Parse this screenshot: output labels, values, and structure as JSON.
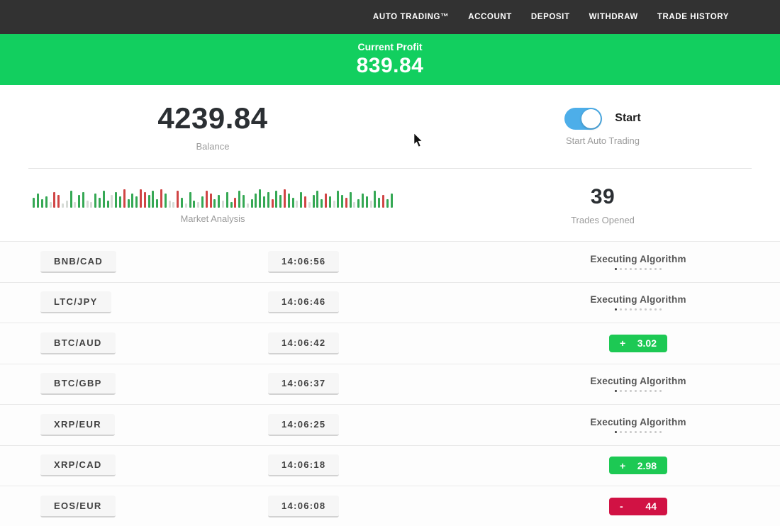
{
  "navbar": {
    "items": [
      {
        "id": "auto-trading",
        "label": "AUTO TRADING™"
      },
      {
        "id": "account",
        "label": "ACCOUNT"
      },
      {
        "id": "deposit",
        "label": "DEPOSIT"
      },
      {
        "id": "withdraw",
        "label": "WITHDRAW"
      },
      {
        "id": "trade-history",
        "label": "TRADE HISTORY"
      }
    ]
  },
  "profit_banner": {
    "label": "Current Profit",
    "value": "839.84"
  },
  "stats": {
    "balance": {
      "value": "4239.84",
      "label": "Balance"
    },
    "auto_trading": {
      "toggle_label": "Start",
      "label": "Start Auto Trading",
      "enabled": true
    },
    "market": {
      "label": "Market Analysis",
      "bars": [
        [
          14,
          "g"
        ],
        [
          20,
          "g"
        ],
        [
          12,
          "g"
        ],
        [
          16,
          "g"
        ],
        [
          8,
          "l"
        ],
        [
          22,
          "r"
        ],
        [
          18,
          "r"
        ],
        [
          6,
          "l"
        ],
        [
          10,
          "l"
        ],
        [
          24,
          "g"
        ],
        [
          8,
          "l"
        ],
        [
          18,
          "g"
        ],
        [
          22,
          "g"
        ],
        [
          10,
          "l"
        ],
        [
          8,
          "l"
        ],
        [
          20,
          "g"
        ],
        [
          14,
          "g"
        ],
        [
          24,
          "g"
        ],
        [
          10,
          "g"
        ],
        [
          18,
          "l"
        ],
        [
          22,
          "g"
        ],
        [
          16,
          "g"
        ],
        [
          26,
          "r"
        ],
        [
          12,
          "g"
        ],
        [
          20,
          "g"
        ],
        [
          16,
          "g"
        ],
        [
          26,
          "r"
        ],
        [
          22,
          "r"
        ],
        [
          18,
          "g"
        ],
        [
          24,
          "g"
        ],
        [
          12,
          "g"
        ],
        [
          26,
          "r"
        ],
        [
          20,
          "g"
        ],
        [
          10,
          "l"
        ],
        [
          8,
          "l"
        ],
        [
          24,
          "r"
        ],
        [
          14,
          "g"
        ],
        [
          6,
          "l"
        ],
        [
          22,
          "g"
        ],
        [
          10,
          "g"
        ],
        [
          8,
          "l"
        ],
        [
          16,
          "g"
        ],
        [
          24,
          "r"
        ],
        [
          20,
          "r"
        ],
        [
          12,
          "g"
        ],
        [
          18,
          "g"
        ],
        [
          10,
          "l"
        ],
        [
          22,
          "g"
        ],
        [
          8,
          "g"
        ],
        [
          14,
          "r"
        ],
        [
          24,
          "g"
        ],
        [
          18,
          "g"
        ],
        [
          6,
          "l"
        ],
        [
          12,
          "g"
        ],
        [
          20,
          "g"
        ],
        [
          26,
          "g"
        ],
        [
          16,
          "g"
        ],
        [
          22,
          "g"
        ],
        [
          12,
          "r"
        ],
        [
          24,
          "g"
        ],
        [
          18,
          "g"
        ],
        [
          26,
          "r"
        ],
        [
          20,
          "g"
        ],
        [
          14,
          "g"
        ],
        [
          10,
          "l"
        ],
        [
          22,
          "g"
        ],
        [
          16,
          "r"
        ],
        [
          8,
          "l"
        ],
        [
          18,
          "g"
        ],
        [
          24,
          "g"
        ],
        [
          12,
          "g"
        ],
        [
          20,
          "r"
        ],
        [
          16,
          "g"
        ],
        [
          10,
          "l"
        ],
        [
          24,
          "g"
        ],
        [
          18,
          "g"
        ],
        [
          14,
          "r"
        ],
        [
          22,
          "g"
        ],
        [
          8,
          "l"
        ],
        [
          12,
          "g"
        ],
        [
          20,
          "g"
        ],
        [
          16,
          "g"
        ],
        [
          10,
          "l"
        ],
        [
          24,
          "g"
        ],
        [
          14,
          "g"
        ],
        [
          18,
          "r"
        ],
        [
          12,
          "g"
        ],
        [
          20,
          "g"
        ]
      ]
    },
    "trades_opened": {
      "value": "39",
      "label": "Trades Opened"
    }
  },
  "trades": [
    {
      "pair": "BNB/CAD",
      "time": "14:06:56",
      "status": "executing",
      "status_label": "Executing Algorithm"
    },
    {
      "pair": "LTC/JPY",
      "time": "14:06:46",
      "status": "executing",
      "status_label": "Executing Algorithm"
    },
    {
      "pair": "BTC/AUD",
      "time": "14:06:42",
      "status": "profit",
      "sign": "+",
      "value": "3.02"
    },
    {
      "pair": "BTC/GBP",
      "time": "14:06:37",
      "status": "executing",
      "status_label": "Executing Algorithm"
    },
    {
      "pair": "XRP/EUR",
      "time": "14:06:25",
      "status": "executing",
      "status_label": "Executing Algorithm"
    },
    {
      "pair": "XRP/CAD",
      "time": "14:06:18",
      "status": "profit",
      "sign": "+",
      "value": "2.98"
    },
    {
      "pair": "EOS/EUR",
      "time": "14:06:08",
      "status": "loss",
      "sign": "-",
      "value": "44"
    }
  ],
  "progress_dots": {
    "count": 10,
    "active_index": 0
  },
  "colors": {
    "navbar_dark": "#323232",
    "banner_green": "#12cf5f",
    "profit_badge_green": "#1dc954",
    "loss_badge_red": "#d11244",
    "toggle_blue": "#4daee9",
    "bar_green": "#35a854",
    "bar_red": "#d04545",
    "bar_gray": "#d6dbd6"
  }
}
